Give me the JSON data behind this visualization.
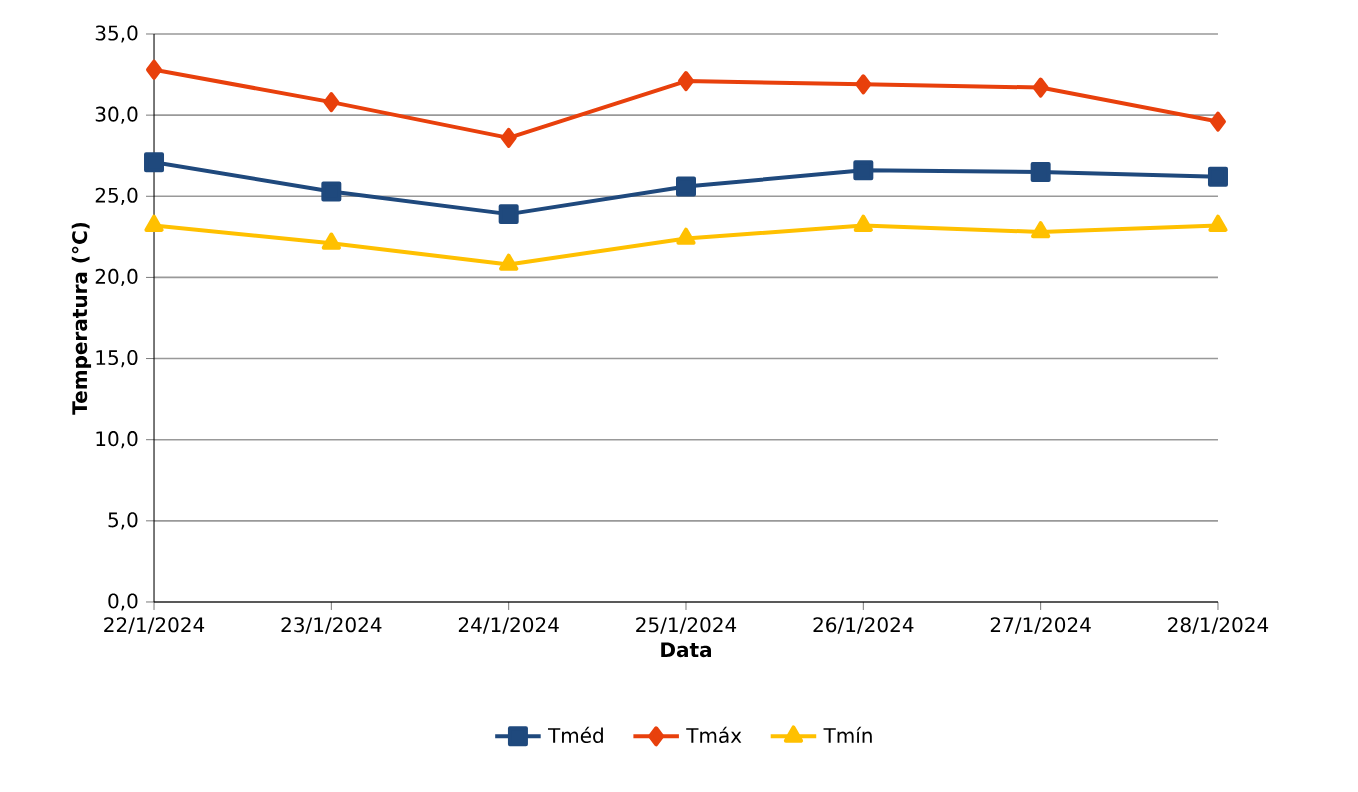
{
  "chart_data": {
    "type": "line",
    "xlabel": "Data",
    "ylabel": "Temperatura (°C)",
    "categories": [
      "22/1/2024",
      "23/1/2024",
      "24/1/2024",
      "25/1/2024",
      "26/1/2024",
      "27/1/2024",
      "28/1/2024"
    ],
    "series": [
      {
        "name": "Tméd",
        "color": "#1f497d",
        "marker": "square",
        "values": [
          27.1,
          25.3,
          23.9,
          25.6,
          26.6,
          26.5,
          26.2
        ]
      },
      {
        "name": "Tmáx",
        "color": "#e8400c",
        "marker": "diamond",
        "values": [
          32.8,
          30.8,
          28.6,
          32.1,
          31.9,
          31.7,
          29.6
        ]
      },
      {
        "name": "Tmín",
        "color": "#ffc000",
        "marker": "triangle",
        "values": [
          23.2,
          22.1,
          20.8,
          22.4,
          23.2,
          22.8,
          23.2
        ]
      }
    ],
    "ylim": [
      0,
      35
    ],
    "yticks": [
      {
        "value": 0,
        "label": "0,0"
      },
      {
        "value": 5,
        "label": "5,0"
      },
      {
        "value": 10,
        "label": "10,0"
      },
      {
        "value": 15,
        "label": "15,0"
      },
      {
        "value": 20,
        "label": "20,0"
      },
      {
        "value": 25,
        "label": "25,0"
      },
      {
        "value": 30,
        "label": "30,0"
      },
      {
        "value": 35,
        "label": "35,0"
      }
    ],
    "grid": "y",
    "legend": "bottom",
    "line_style": "solid"
  }
}
